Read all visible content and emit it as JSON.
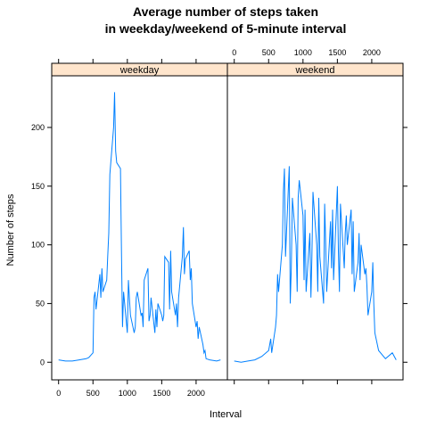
{
  "chart_data": {
    "type": "line",
    "title_line1": "Average number of steps taken",
    "title_line2": "in weekday/weekend of 5-minute interval",
    "xlabel": "Interval",
    "ylabel": "Number of steps",
    "xlim": [
      -100,
      2455
    ],
    "ylim": [
      -15,
      244
    ],
    "x_ticks": [
      0,
      500,
      1000,
      1500,
      2000
    ],
    "y_ticks": [
      0,
      50,
      100,
      150,
      200
    ],
    "line_color": "#0080ff",
    "strip_color": "#ffe5cc",
    "panels": [
      {
        "name": "weekday",
        "x": [
          0,
          100,
          200,
          300,
          400,
          440,
          500,
          515,
          530,
          545,
          600,
          615,
          630,
          645,
          700,
          715,
          730,
          745,
          800,
          815,
          830,
          845,
          900,
          915,
          930,
          945,
          1000,
          1015,
          1030,
          1045,
          1100,
          1115,
          1130,
          1145,
          1200,
          1215,
          1230,
          1245,
          1300,
          1315,
          1330,
          1345,
          1400,
          1415,
          1430,
          1445,
          1500,
          1515,
          1530,
          1545,
          1600,
          1615,
          1630,
          1645,
          1700,
          1715,
          1730,
          1745,
          1800,
          1815,
          1830,
          1845,
          1900,
          1915,
          1930,
          1945,
          2000,
          2015,
          2030,
          2045,
          2100,
          2115,
          2130,
          2145,
          2200,
          2300,
          2355
        ],
        "y": [
          2,
          1,
          1,
          2,
          3,
          4,
          8,
          55,
          60,
          45,
          75,
          55,
          80,
          60,
          70,
          90,
          110,
          160,
          200,
          230,
          180,
          170,
          165,
          90,
          30,
          60,
          25,
          70,
          55,
          40,
          25,
          30,
          55,
          60,
          40,
          42,
          30,
          70,
          80,
          35,
          40,
          55,
          25,
          45,
          30,
          50,
          40,
          35,
          40,
          90,
          85,
          45,
          95,
          60,
          40,
          50,
          30,
          55,
          90,
          115,
          75,
          88,
          95,
          70,
          80,
          50,
          30,
          35,
          20,
          30,
          15,
          8,
          10,
          3,
          2,
          1,
          2
        ]
      },
      {
        "name": "weekend",
        "x": [
          0,
          100,
          200,
          300,
          400,
          500,
          530,
          545,
          600,
          615,
          630,
          645,
          700,
          715,
          730,
          745,
          800,
          815,
          830,
          845,
          900,
          915,
          930,
          945,
          1000,
          1015,
          1030,
          1045,
          1100,
          1115,
          1130,
          1145,
          1200,
          1215,
          1230,
          1245,
          1300,
          1315,
          1330,
          1345,
          1400,
          1415,
          1430,
          1445,
          1500,
          1515,
          1530,
          1545,
          1600,
          1615,
          1630,
          1645,
          1700,
          1715,
          1730,
          1745,
          1800,
          1815,
          1830,
          1845,
          1900,
          1915,
          1930,
          1945,
          2000,
          2015,
          2030,
          2045,
          2100,
          2200,
          2300,
          2355
        ],
        "y": [
          1,
          0,
          1,
          2,
          5,
          10,
          20,
          8,
          30,
          40,
          75,
          60,
          100,
          145,
          165,
          90,
          167,
          50,
          80,
          140,
          100,
          60,
          140,
          155,
          125,
          70,
          130,
          60,
          110,
          55,
          90,
          145,
          100,
          60,
          140,
          90,
          50,
          135,
          100,
          60,
          120,
          80,
          130,
          70,
          150,
          95,
          60,
          135,
          80,
          110,
          125,
          100,
          130,
          75,
          120,
          60,
          85,
          110,
          70,
          100,
          75,
          80,
          65,
          40,
          60,
          85,
          50,
          25,
          10,
          3,
          8,
          2
        ]
      }
    ]
  }
}
